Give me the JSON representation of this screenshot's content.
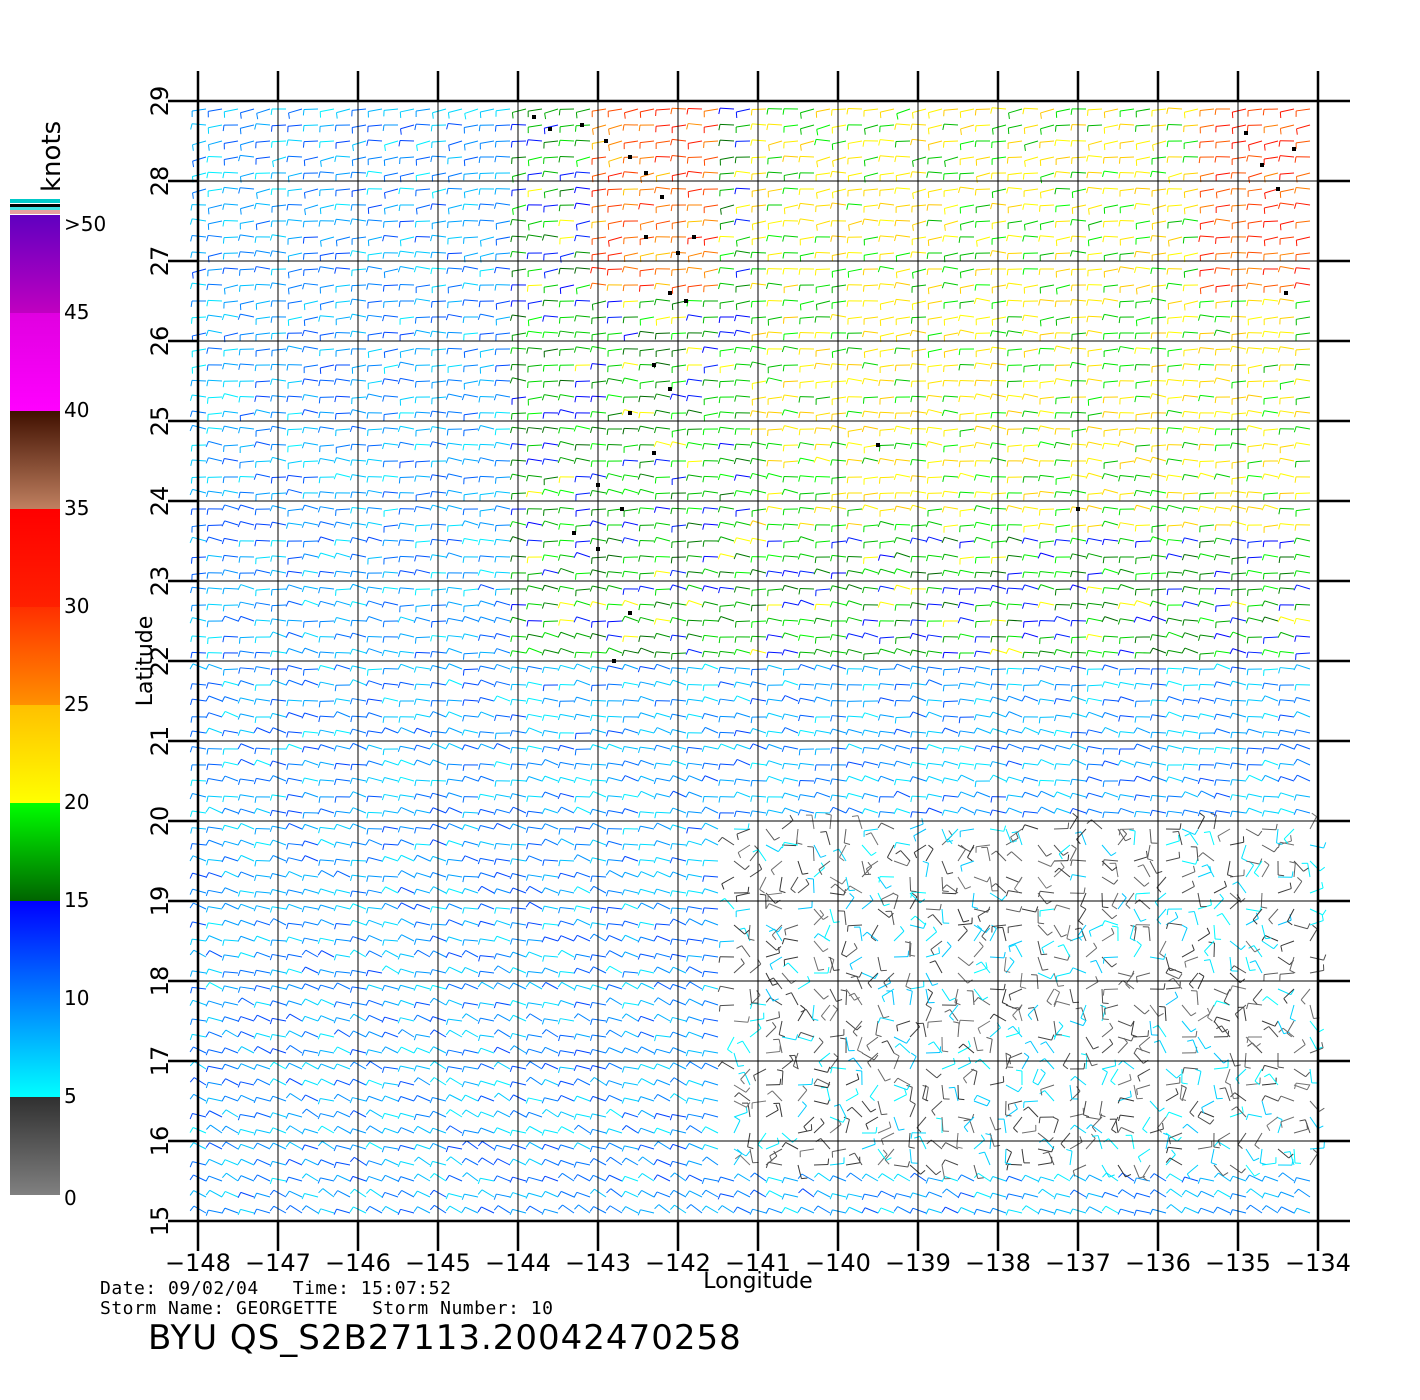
{
  "chart_data": {
    "type": "wind-vector-map",
    "xlabel": "Longitude",
    "ylabel": "Latitude",
    "xlim": [
      -148,
      -134
    ],
    "ylim": [
      15,
      29
    ],
    "x_ticks": [
      -148,
      -147,
      -146,
      -145,
      -144,
      -143,
      -142,
      -141,
      -140,
      -139,
      -138,
      -137,
      -136,
      -135,
      -134
    ],
    "x_tick_labels": [
      "-148",
      "-147",
      "-146",
      "-145",
      "-144",
      "-143",
      "-142",
      "-141",
      "-140",
      "-139",
      "-138",
      "-137",
      "-136",
      "-135",
      "-134"
    ],
    "y_ticks": [
      15,
      16,
      17,
      18,
      19,
      20,
      21,
      22,
      23,
      24,
      25,
      26,
      27,
      28,
      29
    ],
    "y_tick_labels": [
      "15",
      "16",
      "17",
      "18",
      "19",
      "20",
      "21",
      "22",
      "23",
      "24",
      "25",
      "26",
      "27",
      "28",
      "29"
    ],
    "grid": true,
    "colorbar": {
      "unit": "knots",
      "labels": [
        "0",
        "5",
        "10",
        "15",
        "20",
        "25",
        "30",
        "35",
        "40",
        "45",
        ">50"
      ],
      "bands": [
        {
          "from": 0,
          "to": 5,
          "colors": [
            "#808080",
            "#303030"
          ]
        },
        {
          "from": 5,
          "to": 10,
          "colors": [
            "#00ffff",
            "#0080ff"
          ]
        },
        {
          "from": 10,
          "to": 15,
          "colors": [
            "#0080ff",
            "#0000ff"
          ]
        },
        {
          "from": 15,
          "to": 20,
          "colors": [
            "#006400",
            "#00ff00"
          ]
        },
        {
          "from": 20,
          "to": 25,
          "colors": [
            "#ffff00",
            "#ffc000"
          ]
        },
        {
          "from": 25,
          "to": 30,
          "colors": [
            "#ff9000",
            "#ff3000"
          ]
        },
        {
          "from": 30,
          "to": 35,
          "colors": [
            "#ff2000",
            "#ff0000"
          ]
        },
        {
          "from": 35,
          "to": 40,
          "colors": [
            "#c08060",
            "#401000"
          ]
        },
        {
          "from": 40,
          "to": 45,
          "colors": [
            "#ff00ff",
            "#e000e0"
          ]
        },
        {
          "from": 45,
          "to": 50,
          "colors": [
            "#c000c0",
            "#6000c0"
          ]
        }
      ]
    },
    "wind_regions": [
      {
        "lon": [
          -148,
          -134
        ],
        "lat": [
          15,
          29
        ],
        "speed_knots": 9
      },
      {
        "lon": [
          -144,
          -134
        ],
        "lat": [
          22,
          29
        ],
        "speed_knots": 17
      },
      {
        "lon": [
          -141,
          -134
        ],
        "lat": [
          23.5,
          29
        ],
        "speed_knots": 21
      },
      {
        "lon": [
          -143,
          -141.5
        ],
        "lat": [
          26.5,
          29
        ],
        "speed_knots": 28
      },
      {
        "lon": [
          -135.5,
          -134
        ],
        "lat": [
          26.5,
          29
        ],
        "speed_knots": 29
      },
      {
        "lon": [
          -141.5,
          -134
        ],
        "lat": [
          15.5,
          20
        ],
        "speed_knots": 4
      }
    ],
    "rain_flag_points": [
      [
        -143.8,
        28.8
      ],
      [
        -143.6,
        28.65
      ],
      [
        -143.2,
        28.7
      ],
      [
        -142.9,
        28.5
      ],
      [
        -142.6,
        28.3
      ],
      [
        -142.4,
        28.1
      ],
      [
        -142.2,
        27.8
      ],
      [
        -142.4,
        27.3
      ],
      [
        -142.0,
        27.1
      ],
      [
        -141.8,
        27.3
      ],
      [
        -142.1,
        26.6
      ],
      [
        -141.9,
        26.5
      ],
      [
        -142.3,
        25.7
      ],
      [
        -142.1,
        25.4
      ],
      [
        -142.6,
        25.1
      ],
      [
        -142.3,
        24.6
      ],
      [
        -143.0,
        24.2
      ],
      [
        -142.7,
        23.9
      ],
      [
        -143.3,
        23.6
      ],
      [
        -143.0,
        23.4
      ],
      [
        -142.6,
        22.6
      ],
      [
        -142.8,
        22.0
      ],
      [
        -139.5,
        24.7
      ],
      [
        -137.0,
        23.9
      ],
      [
        -134.9,
        28.6
      ],
      [
        -134.7,
        28.2
      ],
      [
        -134.5,
        27.9
      ],
      [
        -134.3,
        28.4
      ],
      [
        -134.4,
        26.6
      ]
    ]
  },
  "footer": {
    "line1": "Date: 09/02/04   Time: 15:07:52",
    "line2": "Storm Name: GEORGETTE   Storm Number: 10",
    "product_id": "BYU QS_S2B27113.20042470258"
  }
}
